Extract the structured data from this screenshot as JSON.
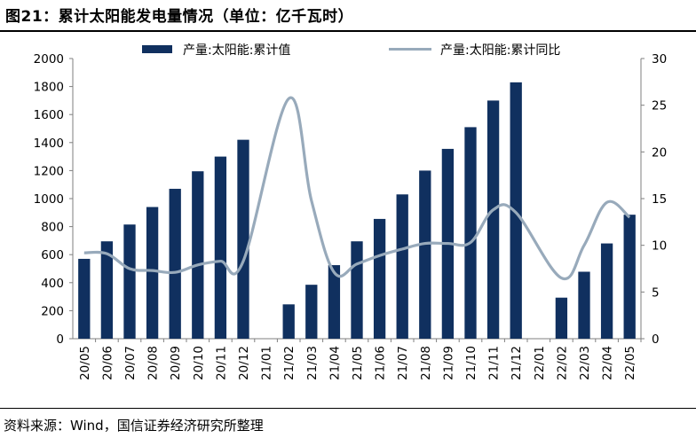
{
  "page": {
    "title": "图21：累计太阳能发电量情况（单位：亿千瓦时）",
    "source": "资料来源：Wind，国信证券经济研究所整理"
  },
  "colors": {
    "bar": "#10305f",
    "line": "#98aabb",
    "axis": "#7f7f7f"
  },
  "chart_data": {
    "type": "bar+line",
    "title": "",
    "categories": [
      "20/05",
      "20/06",
      "20/07",
      "20/08",
      "20/09",
      "20/10",
      "20/11",
      "20/12",
      "21/01",
      "21/02",
      "21/03",
      "21/04",
      "21/05",
      "21/06",
      "21/07",
      "21/08",
      "21/09",
      "21/10",
      "21/11",
      "21/12",
      "22/01",
      "22/02",
      "22/03",
      "22/04",
      "22/05"
    ],
    "series": [
      {
        "name": "产量:太阳能:累计值",
        "type": "bar",
        "axis": "left",
        "values": [
          570,
          695,
          815,
          940,
          1070,
          1195,
          1300,
          1420,
          null,
          245,
          385,
          525,
          695,
          855,
          1030,
          1200,
          1355,
          1510,
          1700,
          1830,
          null,
          293,
          478,
          680,
          885
        ]
      },
      {
        "name": "产量:太阳能:累计同比",
        "type": "line",
        "axis": "right",
        "values": [
          9.2,
          9.1,
          7.5,
          7.3,
          7.1,
          7.9,
          8.3,
          8.3,
          null,
          25.7,
          14.8,
          7.1,
          8.0,
          8.9,
          9.6,
          10.2,
          10.2,
          10.3,
          13.8,
          13.5,
          null,
          6.5,
          10.0,
          14.6,
          13.0
        ]
      }
    ],
    "ylim_left": [
      0,
      2000
    ],
    "yticks_left": [
      "0",
      "200",
      "400",
      "600",
      "800",
      "1000",
      "1200",
      "1400",
      "1600",
      "1800",
      "2000"
    ],
    "ylim_right": [
      0,
      30
    ],
    "yticks_right": [
      "0",
      "5",
      "10",
      "15",
      "20",
      "25",
      "30"
    ],
    "legend_position": "top",
    "grid": false
  }
}
